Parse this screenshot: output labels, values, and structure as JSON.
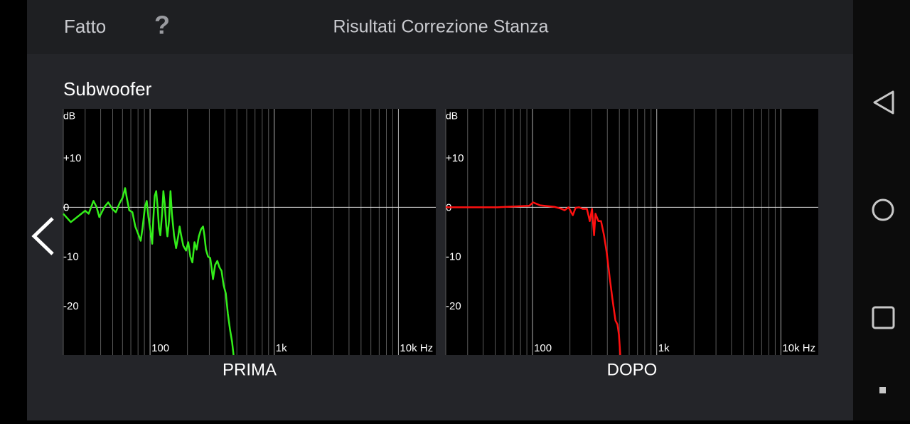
{
  "header": {
    "done": "Fatto",
    "help": "?",
    "title": "Risultati Correzione Stanza"
  },
  "section_title": "Subwoofer",
  "chart_data": [
    {
      "type": "line",
      "title": "PRIMA",
      "y_label": "dB",
      "x_scale": "log",
      "xlim": [
        20,
        20000
      ],
      "ylim": [
        -30,
        20
      ],
      "xticks": [
        100,
        {
          "value": 1000,
          "label": "1k"
        },
        {
          "value": 10000,
          "label": "10k Hz"
        }
      ],
      "x_minor_ticks": [
        20,
        30,
        40,
        50,
        60,
        70,
        80,
        90,
        200,
        300,
        400,
        500,
        600,
        700,
        800,
        900,
        2000,
        3000,
        4000,
        5000,
        6000,
        7000,
        8000,
        9000
      ],
      "yticks": [
        {
          "value": 10,
          "label": "+10"
        },
        0,
        -10,
        -20
      ],
      "reference_line": 0,
      "series": [
        {
          "color": "#33ee1a",
          "x": [
            20,
            23,
            28,
            30,
            32,
            35,
            37,
            39,
            43,
            46,
            50,
            53,
            57,
            60,
            63,
            65,
            68,
            72,
            76,
            81,
            84,
            87,
            91,
            94,
            97,
            101,
            104,
            106,
            109,
            112,
            115,
            118,
            121,
            125,
            128,
            131,
            135,
            138,
            142,
            146,
            150,
            156,
            162,
            169,
            173,
            178,
            185,
            195,
            203,
            211,
            219,
            228,
            237,
            247,
            257,
            267,
            274,
            282,
            293,
            305,
            313,
            321,
            334,
            348,
            362,
            376,
            391,
            407,
            423,
            440,
            458,
            470
          ],
          "values": [
            -1.3,
            -3.0,
            -1.3,
            -0.7,
            -1.3,
            1.3,
            0.1,
            -2.0,
            0.1,
            1.0,
            -0.4,
            -1.0,
            0.9,
            1.9,
            3.9,
            1.9,
            -0.6,
            -1.0,
            -3.9,
            -5.7,
            -6.8,
            -4.2,
            0.1,
            1.3,
            -2.0,
            -4.9,
            -7.4,
            -2.8,
            2.3,
            3.3,
            0.1,
            -4.2,
            -5.7,
            -1.3,
            3.3,
            0.9,
            -3.9,
            -5.9,
            -2.8,
            3.3,
            -1.3,
            -5.7,
            -8.3,
            -5.7,
            -3.9,
            -5.7,
            -7.8,
            -8.8,
            -7.1,
            -10.0,
            -11.2,
            -7.1,
            -8.6,
            -5.9,
            -4.5,
            -3.9,
            -5.7,
            -8.6,
            -10.0,
            -10.3,
            -12.3,
            -14.6,
            -11.7,
            -10.9,
            -12.2,
            -12.9,
            -15.8,
            -17.5,
            -21.6,
            -24.8,
            -27.4,
            -30
          ]
        }
      ]
    },
    {
      "type": "line",
      "title": "DOPO",
      "y_label": "dB",
      "x_scale": "log",
      "xlim": [
        20,
        20000
      ],
      "ylim": [
        -30,
        20
      ],
      "xticks": [
        100,
        {
          "value": 1000,
          "label": "1k"
        },
        {
          "value": 10000,
          "label": "10k Hz"
        }
      ],
      "x_minor_ticks": [
        20,
        30,
        40,
        50,
        60,
        70,
        80,
        90,
        200,
        300,
        400,
        500,
        600,
        700,
        800,
        900,
        2000,
        3000,
        4000,
        5000,
        6000,
        7000,
        8000,
        9000
      ],
      "yticks": [
        {
          "value": 10,
          "label": "+10"
        },
        0,
        -10,
        -20
      ],
      "reference_line": 0,
      "series": [
        {
          "color": "#ff1010",
          "x": [
            20,
            52,
            94,
            101,
            115,
            150,
            171,
            181,
            195,
            211,
            222,
            237,
            253,
            274,
            289,
            301,
            313,
            321,
            339,
            356,
            376,
            396,
            418,
            440,
            465,
            483,
            496,
            509
          ],
          "values": [
            0,
            0,
            0.3,
            1.0,
            0.4,
            0.1,
            -0.3,
            -0.6,
            0,
            -1.6,
            -0.1,
            0,
            -0.3,
            -0.3,
            -2.8,
            -0.3,
            -5.7,
            -1.3,
            -2.8,
            -2.8,
            -5.7,
            -9.3,
            -14.3,
            -18.7,
            -23.0,
            -23.8,
            -25.9,
            -30
          ]
        }
      ]
    }
  ]
}
